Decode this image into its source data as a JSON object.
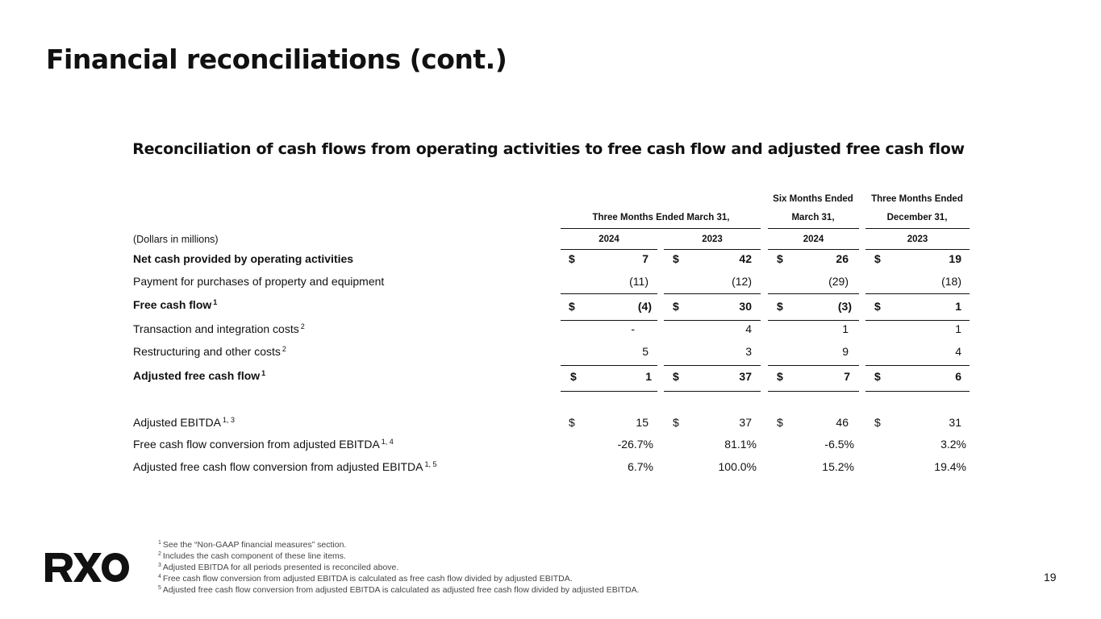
{
  "title": "Financial reconciliations (cont.)",
  "subtitle": "Reconciliation of cash flows from operating activities to free cash flow and adjusted free cash flow",
  "table": {
    "header_groups": {
      "three_months": "Three Months Ended March 31,",
      "six_months_line1": "Six Months Ended",
      "six_months_line2": "March 31,",
      "three_months_dec_line1": "Three Months Ended",
      "three_months_dec_line2": "December 31,"
    },
    "units": "(Dollars in millions)",
    "years": [
      "2024",
      "2023",
      "2024",
      "2023"
    ],
    "currency_symbol": "$",
    "rows": [
      {
        "label": "Net cash provided by operating activities",
        "sup": "",
        "bold": true,
        "values": [
          "7",
          "42",
          "26",
          "19"
        ]
      },
      {
        "label": "Payment for purchases of property and equipment",
        "sup": "",
        "bold": false,
        "values": [
          "(11)",
          "(12)",
          "(29)",
          "(18)"
        ]
      },
      {
        "label": "Free cash flow",
        "sup": "1",
        "bold": true,
        "values": [
          "(4)",
          "30",
          "(3)",
          "1"
        ]
      },
      {
        "label": "Transaction and integration costs",
        "sup": "2",
        "bold": false,
        "values": [
          "-",
          "4",
          "1",
          "1"
        ]
      },
      {
        "label": "Restructuring and other costs",
        "sup": "2",
        "bold": false,
        "values": [
          "5",
          "3",
          "9",
          "4"
        ]
      },
      {
        "label": "Adjusted free cash flow",
        "sup": "1",
        "bold": true,
        "values": [
          "1",
          "37",
          "7",
          "6"
        ]
      },
      {
        "label": "Adjusted EBITDA",
        "sup": "1, 3",
        "bold": false,
        "values": [
          "15",
          "37",
          "46",
          "31"
        ]
      },
      {
        "label": "Free cash flow conversion from adjusted EBITDA",
        "sup": "1, 4",
        "bold": false,
        "values": [
          "-26.7%",
          "81.1%",
          "-6.5%",
          "3.2%"
        ]
      },
      {
        "label": "Adjusted free cash flow conversion from adjusted EBITDA",
        "sup": "1, 5",
        "bold": false,
        "values": [
          "6.7%",
          "100.0%",
          "15.2%",
          "19.4%"
        ]
      }
    ]
  },
  "footnotes": [
    {
      "mark": "1",
      "text": "See the “Non-GAAP financial measures” section."
    },
    {
      "mark": "2",
      "text": "Includes the cash component of these line items."
    },
    {
      "mark": "3",
      "text": "Adjusted EBITDA for all periods presented is reconciled above."
    },
    {
      "mark": "4",
      "text": "Free cash flow conversion from adjusted EBITDA is calculated as free cash flow divided by adjusted EBITDA."
    },
    {
      "mark": "5",
      "text": "Adjusted free cash flow conversion from adjusted EBITDA is calculated as adjusted free cash flow divided by adjusted EBITDA."
    }
  ],
  "logo_text": "RXO",
  "page_number": "19",
  "colors": {
    "text": "#111111",
    "footnote": "#444444",
    "background": "#ffffff"
  }
}
